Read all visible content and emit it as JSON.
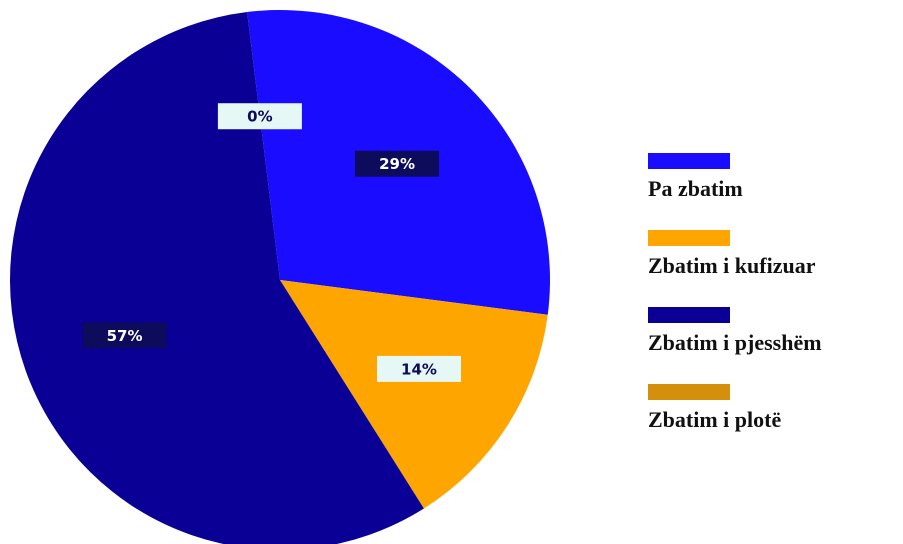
{
  "chart_data": {
    "type": "pie",
    "categories": [
      "Pa zbatim",
      "Zbatim i kufizuar",
      "Zbatim i pjesshëm",
      "Zbatim i plotë"
    ],
    "values": [
      29,
      14,
      57,
      0
    ],
    "value_labels": [
      "29%",
      "14%",
      "57%",
      "0%"
    ],
    "colors": [
      "#1a0dff",
      "#ffa500",
      "#0a0096",
      "#d48f0c"
    ],
    "legend": "right"
  }
}
